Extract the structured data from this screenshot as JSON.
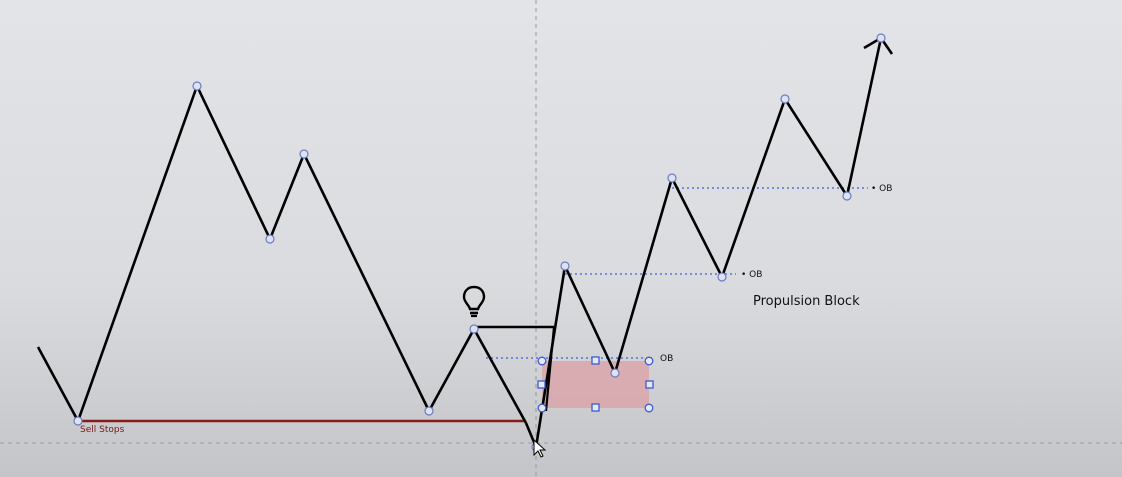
{
  "labels": {
    "sell_stops": "Sell Stops",
    "propulsion_block": "Propulsion Block",
    "ob_1": "• OB",
    "ob_2": "• OB",
    "ob_3": "OB"
  },
  "icons": {
    "lightbulb": "lightbulb-icon",
    "cursor": "mouse-cursor-icon"
  },
  "colors": {
    "background_top": "#e4e5e8",
    "background_bottom": "#c6c7ca",
    "price_line": "#000000",
    "node_fill": "#dde3f5",
    "node_stroke": "#6a7cc0",
    "ob_dotted_line": "#3d5fd6",
    "sell_stops_line": "#8a1a1a",
    "sell_stops_text": "#7a1717",
    "block_fill": "#d9a7ad",
    "block_handle": "#3c5bd0",
    "crosshair": "#9a9a9e"
  }
}
